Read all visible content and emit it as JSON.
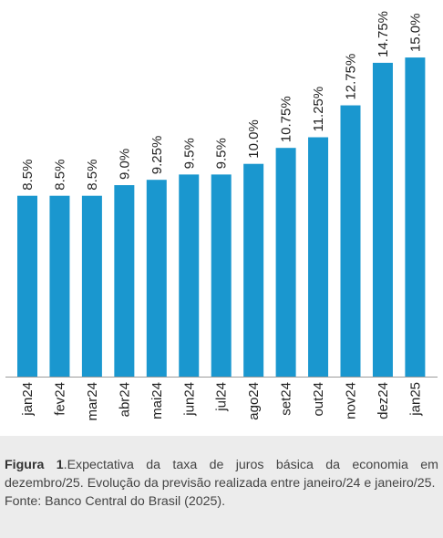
{
  "chart_data": {
    "type": "bar",
    "categories": [
      "jan24",
      "fev24",
      "mar24",
      "abr24",
      "mai24",
      "jun24",
      "jul24",
      "ago24",
      "set24",
      "out24",
      "nov24",
      "dez24",
      "jan25"
    ],
    "values": [
      8.5,
      8.5,
      8.5,
      9.0,
      9.25,
      9.5,
      9.5,
      10.0,
      10.75,
      11.25,
      12.75,
      14.75,
      15.0
    ],
    "value_labels": [
      "8.5%",
      "8.5%",
      "8.5%",
      "9.0%",
      "9.25%",
      "9.5%",
      "9.5%",
      "10.0%",
      "10.75%",
      "11.25%",
      "12.75%",
      "14.75%",
      "15.0%"
    ],
    "title": "",
    "xlabel": "",
    "ylabel": "",
    "ylim": [
      0,
      15.0
    ],
    "grid": false,
    "legend": "none",
    "bar_color": "#1a97cf"
  },
  "caption": {
    "figure_label": "Figura 1",
    "text": ".Expectativa da taxa de juros básica da economia em dezembro/25. Evolução da previsão realizada entre janeiro/24 e janeiro/25.",
    "source": "Fonte: Banco Central do Brasil (2025)."
  }
}
